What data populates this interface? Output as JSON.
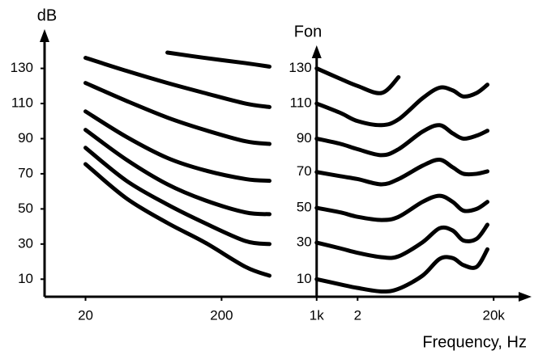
{
  "chart_data": {
    "type": "line",
    "y_label": "dB",
    "curve_axis_label": "Fon",
    "x_label": "Frequency, Hz",
    "log_x": true,
    "x": [
      20,
      40,
      80,
      150,
      300,
      450,
      700,
      1000,
      1500,
      2000,
      3000,
      4000,
      6000,
      8000,
      10000,
      12000,
      15000,
      18000
    ],
    "xlim": [
      10,
      35000
    ],
    "xticks": [
      20,
      200,
      {
        "value": 1000,
        "label": "1k"
      },
      {
        "value": 2000,
        "label": "2"
      },
      {
        "value": 20000,
        "label": "20k"
      }
    ],
    "ylim": [
      0,
      145
    ],
    "yticks": [
      10,
      30,
      50,
      70,
      90,
      110,
      130
    ],
    "series": [
      {
        "name": "130",
        "color": "#000000",
        "values": [
          null,
          null,
          139,
          136,
          133,
          131,
          null,
          130,
          124,
          120,
          116,
          125,
          null,
          null,
          null,
          null,
          null,
          null
        ]
      },
      {
        "name": "110",
        "color": "#000000",
        "values": [
          136,
          128.6,
          121.7,
          116,
          110,
          108,
          null,
          110,
          104.6,
          100,
          97.7,
          101,
          113,
          119,
          117.5,
          114,
          116,
          120.7
        ]
      },
      {
        "name": "90",
        "color": "#000000",
        "values": [
          121.7,
          111.5,
          102,
          95,
          88.5,
          87,
          null,
          90,
          87,
          84,
          80.6,
          84,
          94,
          97.7,
          93,
          90,
          91.7,
          94.5
        ]
      },
      {
        "name": "70",
        "color": "#000000",
        "values": [
          105.5,
          91,
          79,
          72,
          67,
          66,
          null,
          71,
          68.6,
          67,
          64,
          67,
          74.6,
          78,
          73.7,
          70,
          70,
          71.4
        ]
      },
      {
        "name": "50",
        "color": "#000000",
        "values": [
          95,
          78,
          64,
          55,
          48,
          47,
          null,
          50.6,
          48,
          45.5,
          43.7,
          45.5,
          54,
          57.5,
          54,
          49,
          50,
          54
        ]
      },
      {
        "name": "30",
        "color": "#000000",
        "values": [
          84.8,
          66,
          52.5,
          42,
          31.7,
          30,
          null,
          30.8,
          27.5,
          25,
          22.5,
          23,
          31,
          39,
          37.7,
          32,
          33,
          41
        ]
      },
      {
        "name": "10",
        "color": "#000000",
        "values": [
          75.5,
          56,
          42,
          31,
          17,
          12,
          null,
          10,
          7,
          5,
          3,
          4.5,
          12,
          21.5,
          22,
          18,
          17,
          27
        ]
      }
    ]
  }
}
